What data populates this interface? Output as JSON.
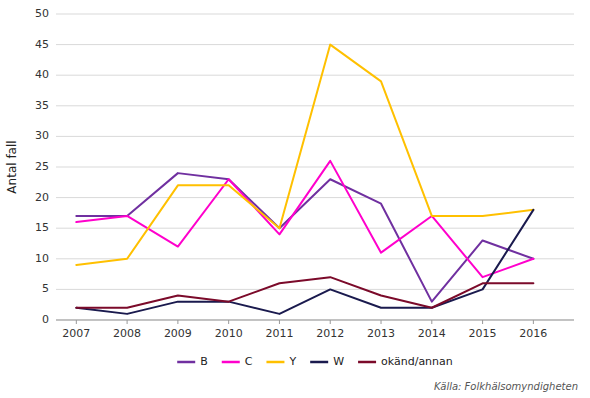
{
  "chart_data": {
    "type": "line",
    "y_label": "Antal fall",
    "x": [
      2007,
      2008,
      2009,
      2010,
      2011,
      2012,
      2013,
      2014,
      2015,
      2016
    ],
    "xlim": [
      2006.6,
      2016.8
    ],
    "xticks": [
      2007,
      2008,
      2009,
      2010,
      2011,
      2012,
      2013,
      2014,
      2015,
      2016
    ],
    "ylim": [
      0,
      50
    ],
    "yticks": [
      0,
      5,
      10,
      15,
      20,
      25,
      30,
      35,
      40,
      45,
      50
    ],
    "grid": "y",
    "legend": "bottom",
    "series": [
      {
        "name": "B",
        "color": "#7030a0",
        "values": [
          17,
          17,
          24,
          23,
          15,
          23,
          19,
          3,
          13,
          10
        ]
      },
      {
        "name": "C",
        "color": "#ff00cc",
        "values": [
          16,
          17,
          12,
          23,
          14,
          26,
          11,
          17,
          7,
          10
        ]
      },
      {
        "name": "Y",
        "color": "#ffc000",
        "values": [
          9,
          10,
          22,
          22,
          15,
          45,
          39,
          17,
          17,
          18
        ]
      },
      {
        "name": "W",
        "color": "#1a1a4e",
        "values": [
          2,
          1,
          3,
          3,
          1,
          5,
          2,
          2,
          5,
          18
        ]
      },
      {
        "name": "okänd/annan",
        "color": "#7b0a2a",
        "values": [
          2,
          2,
          4,
          3,
          6,
          7,
          4,
          2,
          6,
          6
        ]
      }
    ],
    "annotations": [
      "Källa: Folkhälsomyndigheten"
    ]
  }
}
